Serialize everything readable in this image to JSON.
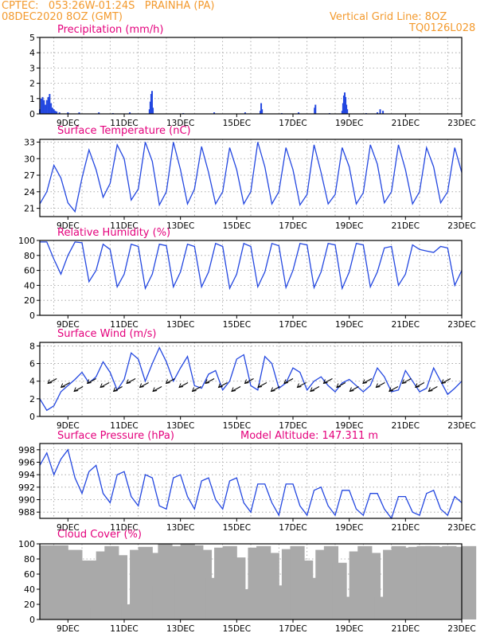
{
  "header": {
    "line1": "CPTEC:   053:26W-01:24S   PRAINHA (PA)",
    "line2": "08DEC2020 8OZ (GMT)",
    "grid_note": "Vertical Grid Line: 8OZ",
    "code": "TQ0126L028"
  },
  "colors": {
    "header": "#f39a2e",
    "title": "#e4007c",
    "line": "#2347e0",
    "cloud": "#a9a9a9",
    "grid": "#9a9a9a"
  },
  "x_ticks": [
    "9DEC",
    "11DEC",
    "13DEC",
    "15DEC",
    "17DEC",
    "19DEC",
    "21DEC",
    "23DEC"
  ],
  "chart_data": [
    {
      "type": "bar",
      "title": "Precipitation (mm/h)",
      "x_unit": "days since 08DEC2020 08Z",
      "ylim": [
        0,
        5
      ],
      "yticks": [
        0,
        1,
        2,
        3,
        4,
        5
      ],
      "x": [
        0.0,
        0.05,
        0.1,
        0.15,
        0.2,
        0.25,
        0.3,
        0.35,
        0.4,
        0.45,
        0.5,
        0.55,
        0.6,
        0.7,
        1.0,
        1.4,
        2.1,
        2.6,
        3.2,
        3.9,
        3.93,
        3.96,
        3.99,
        4.02,
        5.1,
        6.2,
        7.3,
        7.84,
        7.87,
        7.9,
        8.6,
        9.2,
        9.77,
        9.8,
        10.3,
        10.75,
        10.78,
        10.81,
        10.84,
        10.87,
        10.9,
        10.93,
        11.6,
        12.0,
        12.1,
        12.2
      ],
      "values": [
        0.3,
        1.0,
        1.1,
        0.9,
        0.6,
        0.9,
        1.1,
        1.3,
        0.7,
        0.4,
        0.3,
        0.2,
        0.15,
        0.1,
        0.1,
        0.1,
        0.1,
        0.05,
        0.1,
        0.3,
        0.8,
        1.3,
        1.5,
        0.4,
        0.05,
        0.1,
        0.1,
        0.2,
        0.7,
        0.3,
        0.05,
        0.1,
        0.4,
        0.6,
        0.05,
        0.2,
        0.7,
        1.2,
        1.4,
        1.1,
        0.6,
        0.3,
        0.05,
        0.1,
        0.3,
        0.2
      ],
      "grid": true
    },
    {
      "type": "line",
      "title": "Surface Temperature (nC)",
      "x_unit": "days since 08DEC2020 08Z",
      "ylim": [
        19.5,
        33.5
      ],
      "yticks": [
        21,
        24,
        27,
        30,
        33
      ],
      "x": [
        0.0,
        0.25,
        0.5,
        0.75,
        1.0,
        1.25,
        1.5,
        1.75,
        2.0,
        2.25,
        2.5,
        2.75,
        3.0,
        3.25,
        3.5,
        3.75,
        4.0,
        4.25,
        4.5,
        4.75,
        5.0,
        5.25,
        5.5,
        5.75,
        6.0,
        6.25,
        6.5,
        6.75,
        7.0,
        7.25,
        7.5,
        7.75,
        8.0,
        8.25,
        8.5,
        8.75,
        9.0,
        9.25,
        9.5,
        9.75,
        10.0,
        10.25,
        10.5,
        10.75,
        11.0,
        11.25,
        11.5,
        11.75,
        12.0,
        12.25,
        12.5,
        12.75,
        13.0,
        13.25,
        13.5,
        13.75,
        14.0,
        14.25,
        14.5,
        14.75,
        15.0
      ],
      "values": [
        21.8,
        24.0,
        28.8,
        26.5,
        22.0,
        20.4,
        26.5,
        31.6,
        28.0,
        23.0,
        25.5,
        32.5,
        30.0,
        22.5,
        24.5,
        33.0,
        29.5,
        21.6,
        24.0,
        33.0,
        28.0,
        21.8,
        24.5,
        32.2,
        27.5,
        21.8,
        24.0,
        32.0,
        28.0,
        21.8,
        24.0,
        33.0,
        28.5,
        21.8,
        24.0,
        32.0,
        28.0,
        21.6,
        23.5,
        32.5,
        27.5,
        21.8,
        23.5,
        32.0,
        28.5,
        21.8,
        23.8,
        32.5,
        29.0,
        22.0,
        24.0,
        32.5,
        28.0,
        21.8,
        24.0,
        32.0,
        28.5,
        22.0,
        24.0,
        32.0,
        27.5
      ],
      "grid": true
    },
    {
      "type": "line",
      "title": "Relative Humidity (%)",
      "x_unit": "days since 08DEC2020 08Z",
      "ylim": [
        0,
        100
      ],
      "yticks": [
        0,
        20,
        40,
        60,
        80,
        100
      ],
      "x": [
        0.0,
        0.25,
        0.5,
        0.75,
        1.0,
        1.25,
        1.5,
        1.75,
        2.0,
        2.25,
        2.5,
        2.75,
        3.0,
        3.25,
        3.5,
        3.75,
        4.0,
        4.25,
        4.5,
        4.75,
        5.0,
        5.25,
        5.5,
        5.75,
        6.0,
        6.25,
        6.5,
        6.75,
        7.0,
        7.25,
        7.5,
        7.75,
        8.0,
        8.25,
        8.5,
        8.75,
        9.0,
        9.25,
        9.5,
        9.75,
        10.0,
        10.25,
        10.5,
        10.75,
        11.0,
        11.25,
        11.5,
        11.75,
        12.0,
        12.25,
        12.5,
        12.75,
        13.0,
        13.25,
        13.5,
        13.75,
        14.0,
        14.25,
        14.5,
        14.75,
        15.0
      ],
      "values": [
        98,
        98,
        75,
        55,
        80,
        98,
        97,
        45,
        60,
        95,
        88,
        38,
        55,
        95,
        92,
        36,
        55,
        95,
        93,
        38,
        58,
        95,
        92,
        38,
        58,
        96,
        92,
        36,
        55,
        96,
        92,
        38,
        58,
        96,
        93,
        37,
        60,
        96,
        94,
        37,
        58,
        96,
        94,
        36,
        58,
        96,
        94,
        38,
        58,
        90,
        92,
        40,
        55,
        94,
        88,
        86,
        84,
        92,
        90,
        40,
        60
      ],
      "grid": true
    },
    {
      "type": "line",
      "title": "Surface Wind (m/s)",
      "x_unit": "days since 08DEC2020 08Z",
      "ylim": [
        0,
        8.4
      ],
      "yticks": [
        0,
        2,
        4,
        6,
        8
      ],
      "x": [
        0.0,
        0.25,
        0.5,
        0.75,
        1.0,
        1.25,
        1.5,
        1.75,
        2.0,
        2.25,
        2.5,
        2.75,
        3.0,
        3.25,
        3.5,
        3.75,
        4.0,
        4.25,
        4.5,
        4.75,
        5.0,
        5.25,
        5.5,
        5.75,
        6.0,
        6.25,
        6.5,
        6.75,
        7.0,
        7.25,
        7.5,
        7.75,
        8.0,
        8.25,
        8.5,
        8.75,
        9.0,
        9.25,
        9.5,
        9.75,
        10.0,
        10.25,
        10.5,
        10.75,
        11.0,
        11.25,
        11.5,
        11.75,
        12.0,
        12.25,
        12.5,
        12.75,
        13.0,
        13.25,
        13.5,
        13.75,
        14.0,
        14.25,
        14.5,
        14.75,
        15.0
      ],
      "values": [
        2.0,
        0.7,
        1.2,
        2.8,
        3.5,
        4.2,
        5.0,
        3.8,
        4.5,
        6.2,
        5.0,
        3.0,
        4.2,
        7.2,
        6.5,
        4.0,
        6.0,
        7.8,
        6.2,
        4.0,
        5.5,
        6.8,
        3.5,
        3.2,
        4.8,
        5.2,
        3.0,
        4.0,
        6.5,
        7.0,
        3.5,
        3.0,
        6.8,
        6.0,
        3.2,
        3.8,
        5.5,
        5.0,
        3.0,
        4.0,
        4.5,
        3.5,
        2.8,
        3.8,
        4.2,
        3.5,
        2.8,
        3.5,
        5.5,
        4.5,
        2.8,
        3.0,
        5.2,
        4.0,
        2.8,
        3.2,
        5.5,
        4.0,
        2.5,
        3.2,
        4.0
      ],
      "wind_arrows": [
        "sw",
        "sw",
        "sw",
        "sw",
        "sw",
        "sw",
        "sw",
        "sw",
        "sw",
        "sw",
        "sw",
        "sw",
        "sw",
        "sw",
        "sw",
        "sw",
        "sw",
        "sw",
        "sw",
        "sw",
        "sw",
        "sw",
        "sw",
        "sw",
        "sw",
        "sw",
        "sw",
        "sw",
        "sw",
        "sw",
        "sw"
      ],
      "grid": true
    },
    {
      "type": "line",
      "title": "Surface Pressure (hPa)",
      "annotation": "Model Altitude: 147.311 m",
      "x_unit": "days since 08DEC2020 08Z",
      "ylim": [
        987,
        999
      ],
      "yticks": [
        988,
        990,
        992,
        994,
        996,
        998
      ],
      "x": [
        0.0,
        0.25,
        0.5,
        0.75,
        1.0,
        1.25,
        1.5,
        1.75,
        2.0,
        2.25,
        2.5,
        2.75,
        3.0,
        3.25,
        3.5,
        3.75,
        4.0,
        4.25,
        4.5,
        4.75,
        5.0,
        5.25,
        5.5,
        5.75,
        6.0,
        6.25,
        6.5,
        6.75,
        7.0,
        7.25,
        7.5,
        7.75,
        8.0,
        8.25,
        8.5,
        8.75,
        9.0,
        9.25,
        9.5,
        9.75,
        10.0,
        10.25,
        10.5,
        10.75,
        11.0,
        11.25,
        11.5,
        11.75,
        12.0,
        12.25,
        12.5,
        12.75,
        13.0,
        13.25,
        13.5,
        13.75,
        14.0,
        14.25,
        14.5,
        14.75,
        15.0
      ],
      "values": [
        995.5,
        997.5,
        994.0,
        996.5,
        998.0,
        993.5,
        991.0,
        994.5,
        995.5,
        991.0,
        989.5,
        994.0,
        994.5,
        990.5,
        989.0,
        994.0,
        993.5,
        989.0,
        988.5,
        993.5,
        994.0,
        990.5,
        988.5,
        993.0,
        993.5,
        990.0,
        988.5,
        993.0,
        993.5,
        989.5,
        988.0,
        992.5,
        992.5,
        989.5,
        987.5,
        992.5,
        992.5,
        989.0,
        987.5,
        991.5,
        992.0,
        989.0,
        987.5,
        991.5,
        991.5,
        988.5,
        987.5,
        991.0,
        991.0,
        988.5,
        987.0,
        990.5,
        990.5,
        988.0,
        987.5,
        991.0,
        991.5,
        988.5,
        987.5,
        990.5,
        989.5
      ],
      "grid": true
    },
    {
      "type": "area",
      "title": "Cloud Cover (%)",
      "x_unit": "days since 08DEC2020 08Z",
      "ylim": [
        0,
        100
      ],
      "yticks": [
        0,
        20,
        40,
        60,
        80,
        100
      ],
      "x": [
        0.0,
        0.5,
        1.0,
        1.5,
        1.8,
        2.0,
        2.3,
        2.6,
        2.9,
        3.2,
        3.5,
        3.8,
        4.0,
        4.2,
        4.5,
        4.8,
        5.0,
        5.3,
        5.6,
        5.9,
        6.2,
        6.5,
        6.8,
        7.1,
        7.4,
        7.7,
        8.0,
        8.3,
        8.6,
        8.9,
        9.2,
        9.5,
        9.8,
        10.1,
        10.4,
        10.7,
        11.0,
        11.3,
        11.6,
        11.9,
        12.2,
        12.5,
        12.8,
        13.1,
        13.4,
        13.7,
        14.0,
        14.3,
        14.6,
        15.0
      ],
      "values": [
        98,
        98,
        92,
        78,
        15,
        90,
        97,
        85,
        20,
        92,
        96,
        88,
        45,
        100,
        97,
        60,
        100,
        98,
        92,
        55,
        95,
        97,
        82,
        40,
        95,
        97,
        88,
        45,
        93,
        97,
        78,
        55,
        92,
        97,
        75,
        30,
        90,
        97,
        88,
        30,
        92,
        97,
        95,
        96,
        97,
        97,
        96,
        97,
        96,
        97
      ],
      "grid": true
    }
  ]
}
